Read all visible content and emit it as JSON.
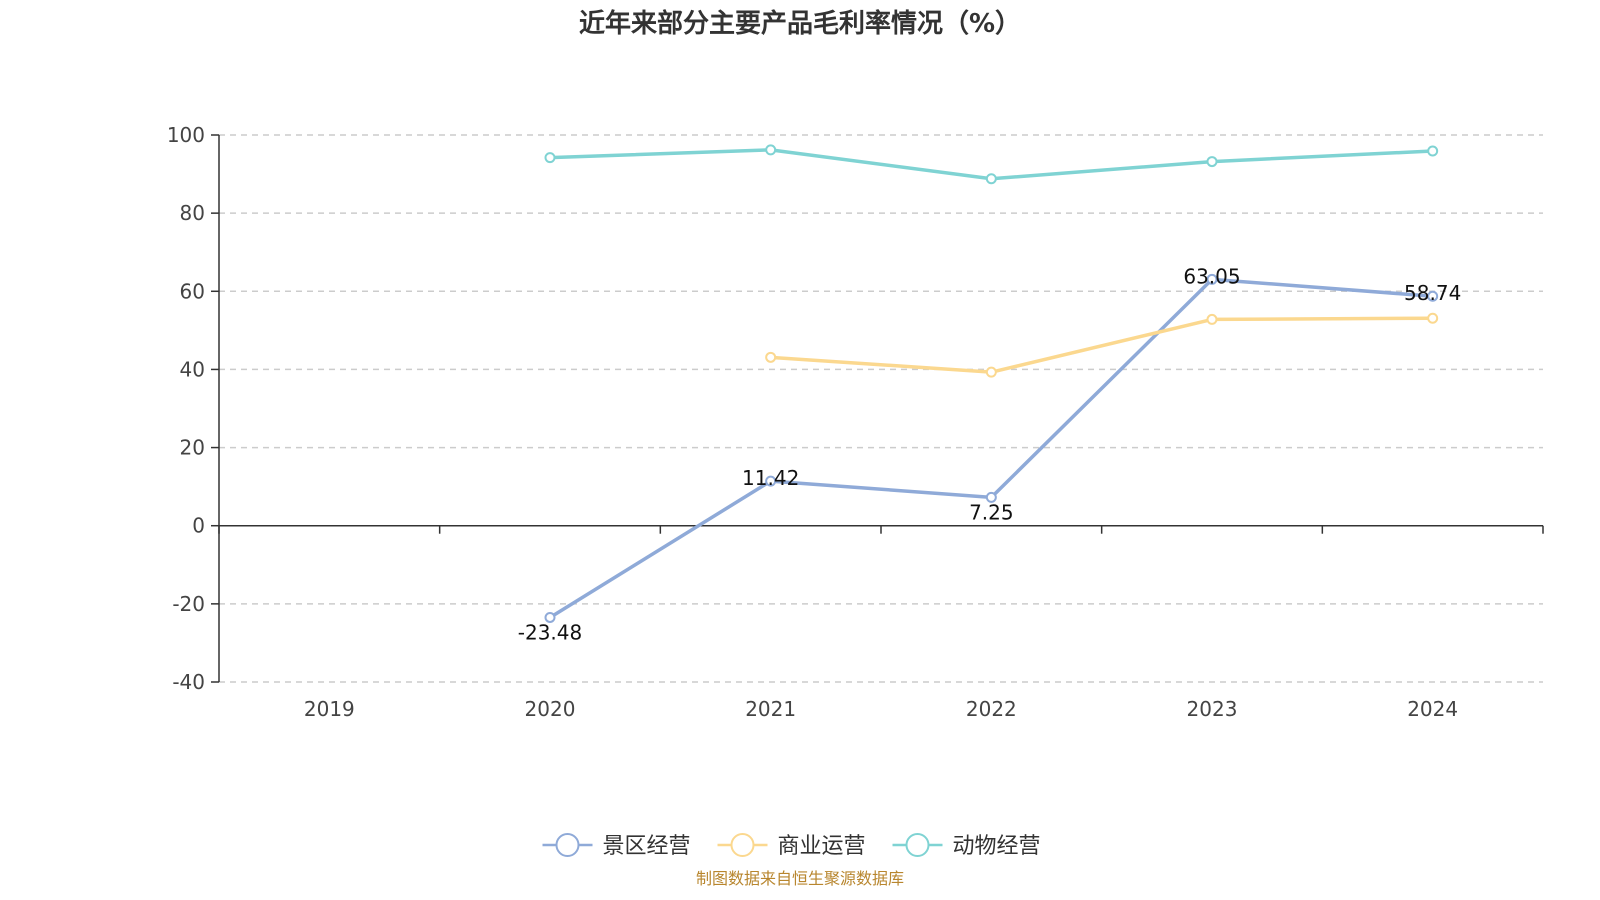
{
  "chart_data": {
    "type": "line",
    "title": "近年来部分主要产品毛利率情况（%）",
    "categories": [
      "2019",
      "2020",
      "2021",
      "2022",
      "2023",
      "2024"
    ],
    "ylim": [
      -40,
      100
    ],
    "yticks": [
      100,
      80,
      60,
      40,
      20,
      0,
      -20,
      -40
    ],
    "grid": true,
    "legend_position": "bottom-center",
    "series": [
      {
        "name": "景区经营",
        "color": "#8faad8",
        "values": [
          null,
          -23.48,
          11.42,
          7.25,
          63.05,
          58.74
        ],
        "labels": [
          null,
          "-23.48",
          "11.42",
          "7.25",
          "63.05",
          "58.74"
        ]
      },
      {
        "name": "商业运营",
        "color": "#fbd88f",
        "values": [
          null,
          null,
          43.1,
          39.3,
          52.8,
          53.1
        ],
        "labels": [
          null,
          null,
          null,
          null,
          null,
          null
        ]
      },
      {
        "name": "动物经营",
        "color": "#7fd3d3",
        "values": [
          null,
          94.2,
          96.2,
          88.8,
          93.2,
          95.9
        ],
        "labels": [
          null,
          null,
          null,
          null,
          null,
          null
        ]
      }
    ]
  },
  "footer": "制图数据来自恒生聚源数据库"
}
